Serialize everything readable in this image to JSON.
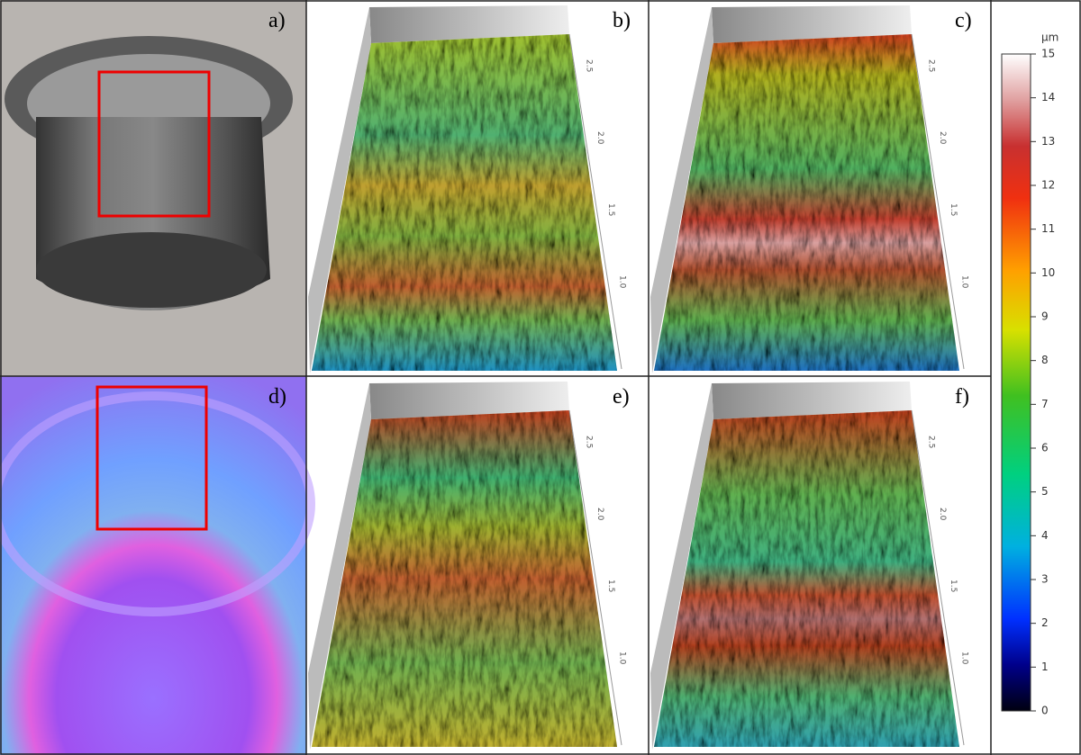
{
  "panels": [
    {
      "label": "a)"
    },
    {
      "label": "b)",
      "axis_labels": [
        "2.5",
        "2.0",
        "1.5",
        "1.0"
      ]
    },
    {
      "label": "c)",
      "axis_labels": [
        "2.5",
        "2.0",
        "1.5",
        "1.0"
      ]
    },
    {
      "label": "d)"
    },
    {
      "label": "e)",
      "axis_labels": [
        "2.5",
        "2.0",
        "1.5",
        "1.0"
      ]
    },
    {
      "label": "f)",
      "axis_labels": [
        "2.5",
        "2.0",
        "1.5",
        "1.0"
      ]
    }
  ],
  "colorbar": {
    "unit": "µm",
    "ticks": [
      0,
      1,
      2,
      3,
      4,
      5,
      6,
      7,
      8,
      9,
      10,
      11,
      12,
      13,
      14,
      15
    ]
  }
}
